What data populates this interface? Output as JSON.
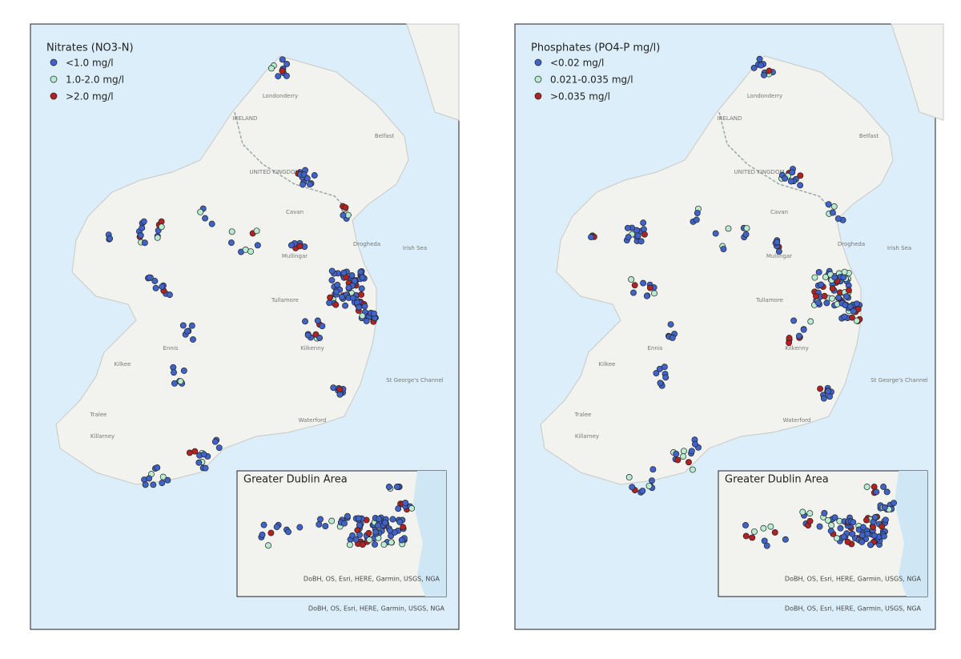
{
  "maps": [
    {
      "legend": {
        "title": "Nitrates (NO3-N)",
        "items": [
          "<1.0 mg/l",
          "1.0-2.0 mg/l",
          ">2.0 mg/l"
        ]
      },
      "inset": {
        "title": "Greater Dublin Area",
        "attribution": "DoBH, OS, Esri, HERE, Garmin, USGS, NGA"
      },
      "attribution": "DoBH, OS, Esri, HERE, Garmin, USGS, NGA"
    },
    {
      "legend": {
        "title": "Phosphates (PO4-P mg/l)",
        "items": [
          "<0.02 mg/l",
          "0.021-0.035 mg/l",
          ">0.035 mg/l"
        ]
      },
      "inset": {
        "title": "Greater Dublin Area",
        "attribution": "DoBH, OS, Esri, HERE, Garmin, USGS, NGA"
      },
      "attribution": "DoBH, OS, Esri, HERE, Garmin, USGS, NGA"
    }
  ],
  "place_labels": [
    "Belfast",
    "Londonderry",
    "IRELAND",
    "UNITED KINGDOM",
    "Mullingar",
    "Tullamore",
    "Kilkenny",
    "Waterford",
    "Tralee",
    "Killarney",
    "Ennis",
    "Kilkee",
    "Irish Sea",
    "St George's Channel",
    "Cavan",
    "Drogheda"
  ]
}
